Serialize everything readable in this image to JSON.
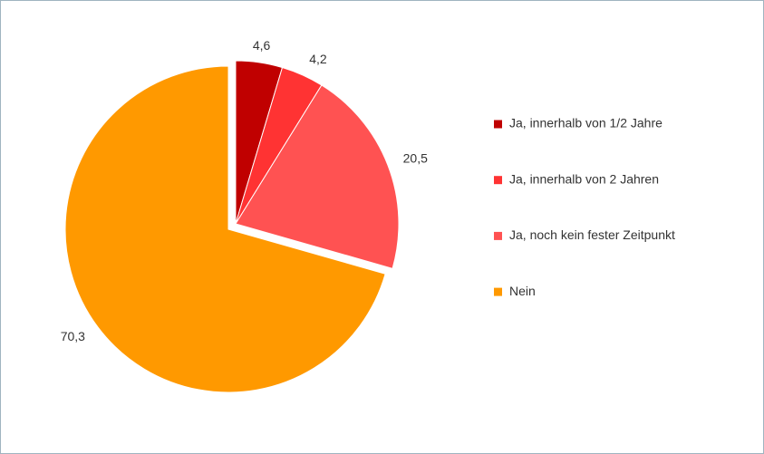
{
  "chart_data": {
    "type": "pie",
    "categories": [
      "Ja, innerhalb von 1/2 Jahre",
      "Ja, innerhalb von 2 Jahren",
      "Ja, noch kein fester Zeitpunkt",
      "Nein"
    ],
    "values": [
      4.6,
      4.2,
      20.5,
      70.3
    ],
    "value_labels": [
      "4,6",
      "4,2",
      "20,5",
      "70,3"
    ],
    "colors": [
      "#c00000",
      "#ff3333",
      "#ff5252",
      "#ff9900"
    ],
    "legend": "right"
  }
}
